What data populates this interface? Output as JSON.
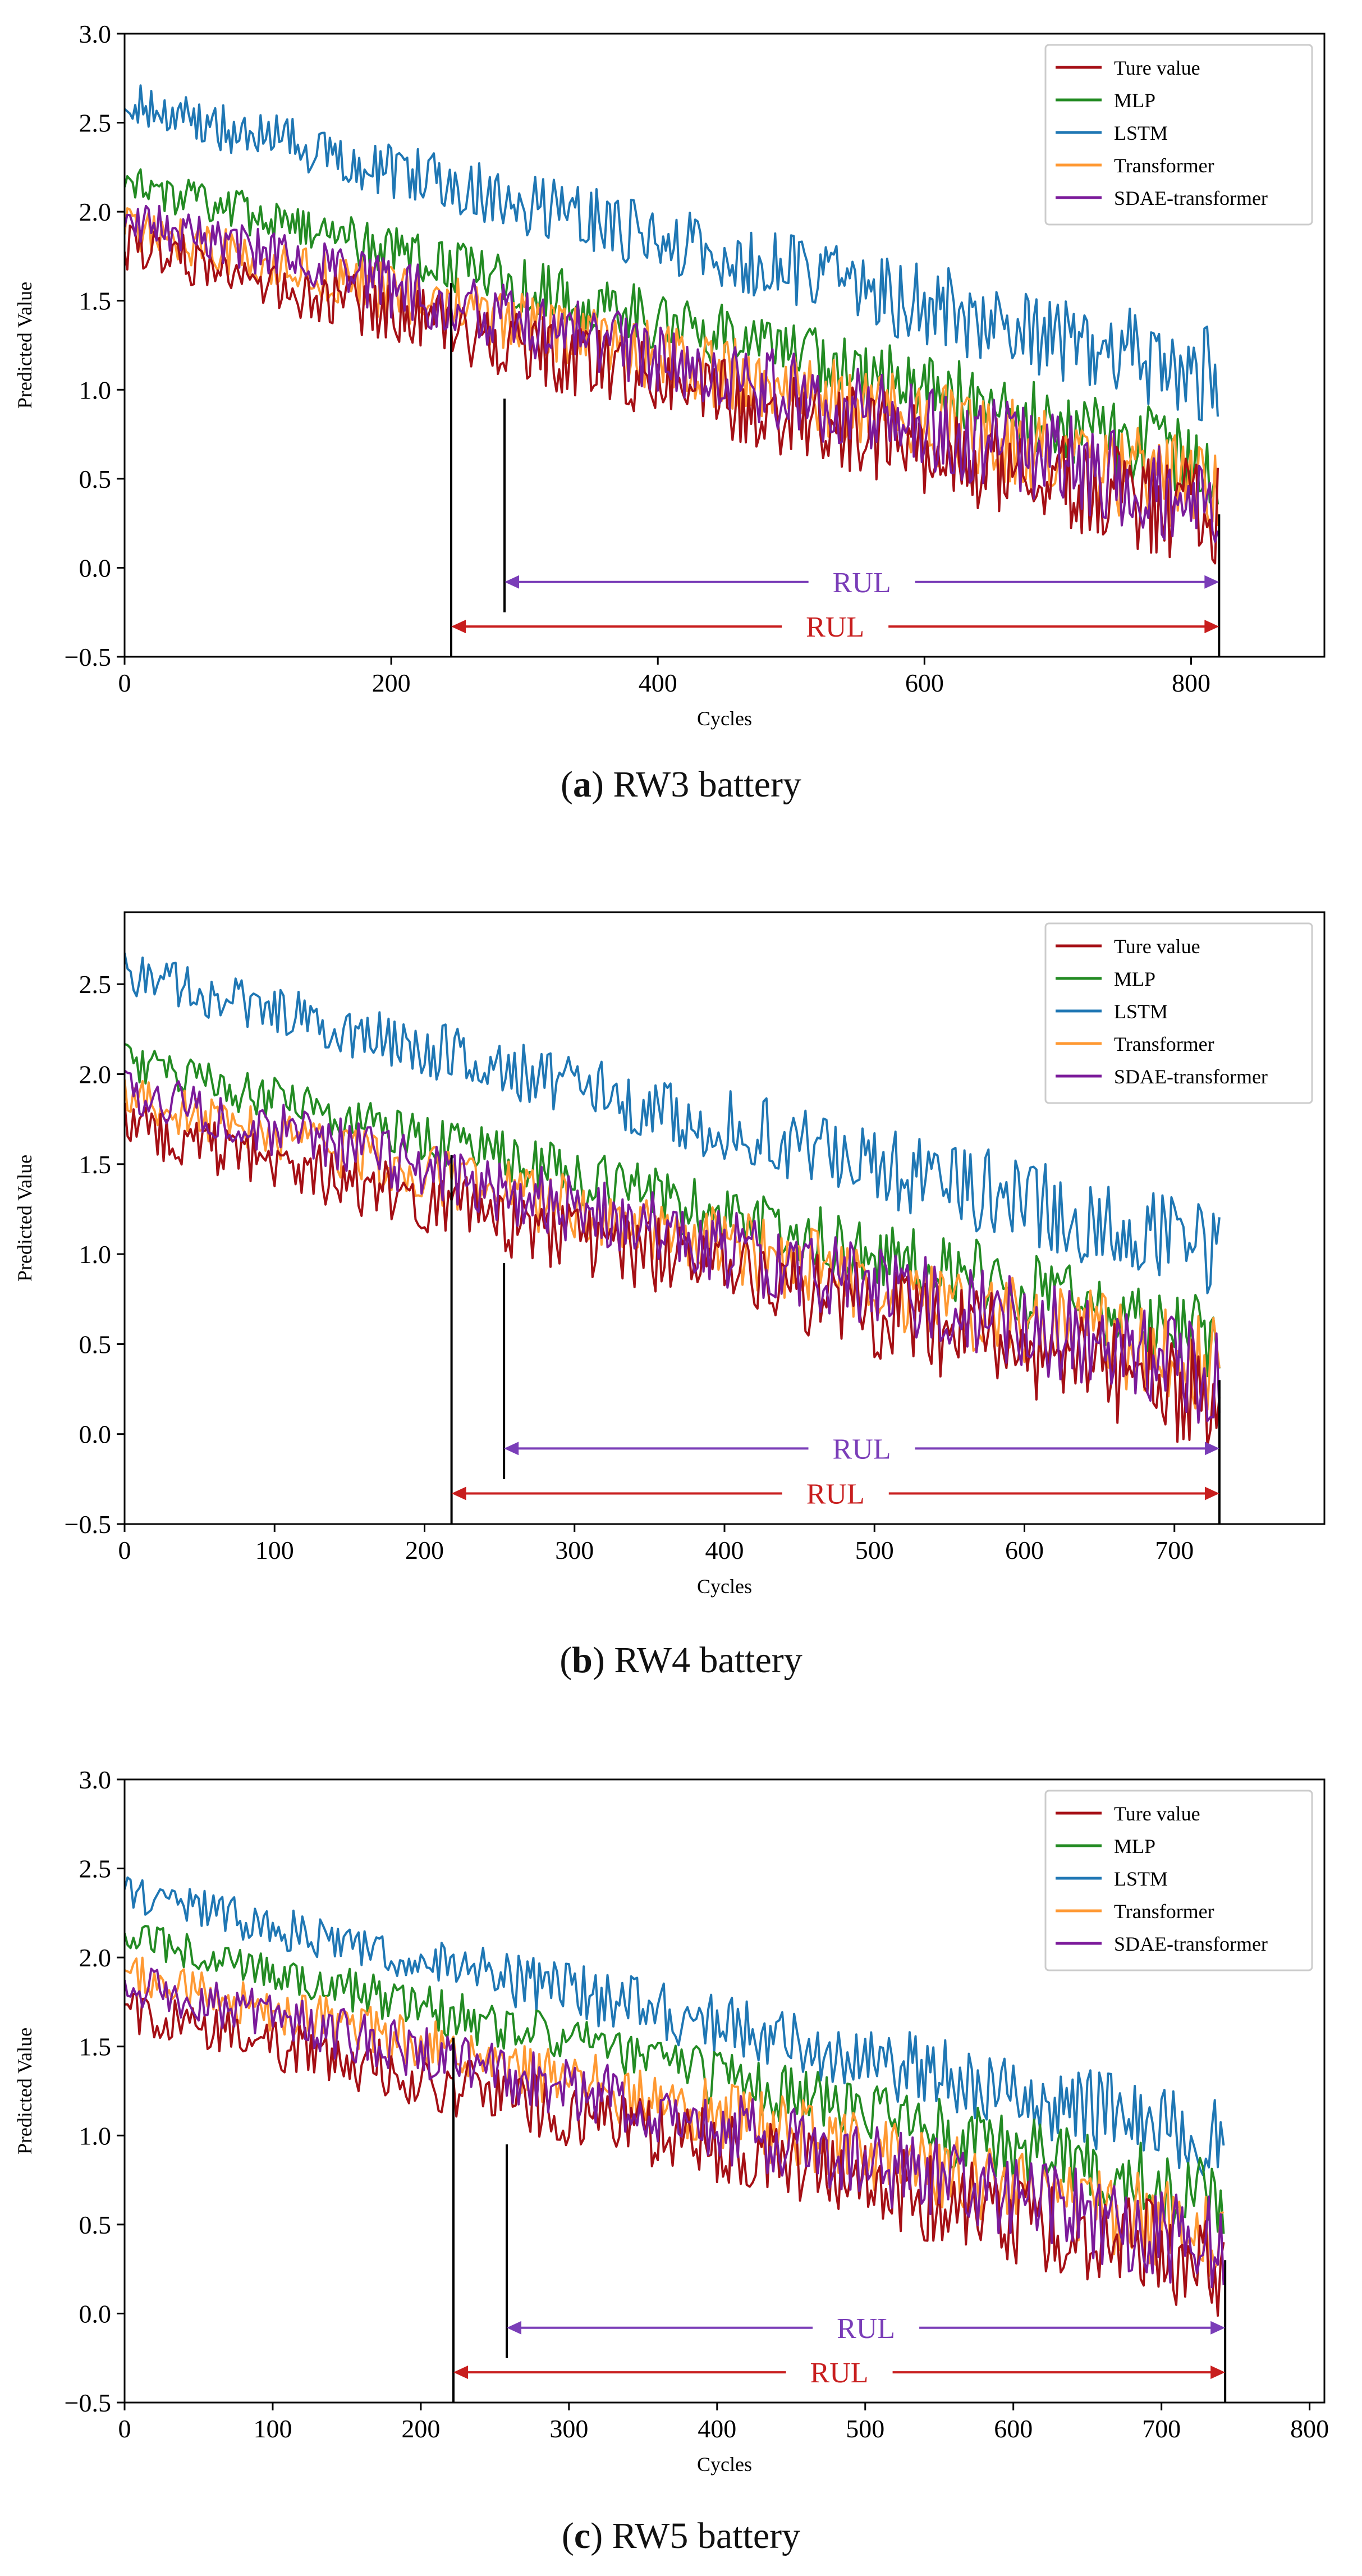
{
  "colors": {
    "ture_value": "#a50f15",
    "mlp": "#238b23",
    "lstm": "#1f77b4",
    "transformer": "#ff9933",
    "sdae_transformer": "#7b1a9a",
    "rul_purple": "#7a3db8",
    "rul_red": "#c81e1e"
  },
  "panels": [
    {
      "caption_letter": "a",
      "caption_text": " RW3 battery",
      "chart_data": {
        "type": "line",
        "xlabel": "Cycles",
        "ylabel": "Predicted Value",
        "xlim": [
          0,
          900
        ],
        "ylim": [
          -0.5,
          3.0
        ],
        "xticks": [
          0,
          200,
          400,
          600,
          800
        ],
        "yticks": [
          -0.5,
          0.0,
          0.5,
          1.0,
          1.5,
          2.0,
          2.5,
          3.0
        ],
        "ytick_labels": [
          "−0.5",
          "0.0",
          "0.5",
          "1.0",
          "1.5",
          "2.0",
          "2.5",
          "3.0"
        ],
        "legend": "top-right",
        "n_cycles": 821,
        "grid": false,
        "series": [
          {
            "name": "Ture value",
            "start": 1.85,
            "end": 0.35,
            "noise": 0.45
          },
          {
            "name": "MLP",
            "start": 2.2,
            "end": 0.65,
            "noise": 0.35
          },
          {
            "name": "LSTM",
            "start": 2.65,
            "end": 1.15,
            "noise": 0.4
          },
          {
            "name": "Transformer",
            "start": 1.95,
            "end": 0.5,
            "noise": 0.4
          },
          {
            "name": "SDAE-transformer",
            "start": 2.0,
            "end": 0.45,
            "noise": 0.42
          }
        ],
        "annotations": [
          {
            "text": "RUL",
            "x_start": 285,
            "x_end": 821,
            "y": -0.08,
            "color": "purple"
          },
          {
            "text": "RUL",
            "x_start": 245,
            "x_end": 821,
            "y": -0.33,
            "color": "red"
          }
        ],
        "vlines": [
          {
            "x": 245,
            "y_top": 1.6,
            "y_bottom": -0.5
          },
          {
            "x": 285,
            "y_top": 0.95,
            "y_bottom": -0.25
          },
          {
            "x": 821,
            "y_top": 0.3,
            "y_bottom": -0.5
          }
        ]
      }
    },
    {
      "caption_letter": "b",
      "caption_text": " RW4 battery",
      "chart_data": {
        "type": "line",
        "xlabel": "Cycles",
        "ylabel": "Predicted Value",
        "xlim": [
          0,
          800
        ],
        "ylim": [
          -0.5,
          2.9
        ],
        "xticks": [
          0,
          100,
          200,
          300,
          400,
          500,
          600,
          700
        ],
        "yticks": [
          -0.5,
          0.0,
          0.5,
          1.0,
          1.5,
          2.0,
          2.5
        ],
        "ytick_labels": [
          "−0.5",
          "0.0",
          "0.5",
          "1.0",
          "1.5",
          "2.0",
          "2.5"
        ],
        "legend": "top-right",
        "n_cycles": 730,
        "grid": false,
        "series": [
          {
            "name": "Ture value",
            "start": 1.75,
            "end": 0.3,
            "noise": 0.45
          },
          {
            "name": "MLP",
            "start": 2.1,
            "end": 0.6,
            "noise": 0.35
          },
          {
            "name": "LSTM",
            "start": 2.6,
            "end": 1.1,
            "noise": 0.4
          },
          {
            "name": "Transformer",
            "start": 1.9,
            "end": 0.45,
            "noise": 0.4
          },
          {
            "name": "SDAE-transformer",
            "start": 1.95,
            "end": 0.4,
            "noise": 0.42
          }
        ],
        "annotations": [
          {
            "text": "RUL",
            "x_start": 253,
            "x_end": 730,
            "y": -0.08,
            "color": "purple"
          },
          {
            "text": "RUL",
            "x_start": 218,
            "x_end": 730,
            "y": -0.33,
            "color": "red"
          }
        ],
        "vlines": [
          {
            "x": 218,
            "y_top": 1.55,
            "y_bottom": -0.5
          },
          {
            "x": 253,
            "y_top": 0.95,
            "y_bottom": -0.25
          },
          {
            "x": 730,
            "y_top": 0.3,
            "y_bottom": -0.5
          }
        ]
      }
    },
    {
      "caption_letter": "c",
      "caption_text": " RW5 battery",
      "chart_data": {
        "type": "line",
        "xlabel": "Cycles",
        "ylabel": "Predicted Value",
        "xlim": [
          0,
          810
        ],
        "ylim": [
          -0.5,
          3.0
        ],
        "xticks": [
          0,
          100,
          200,
          300,
          400,
          500,
          600,
          700,
          800
        ],
        "yticks": [
          -0.5,
          0.0,
          0.5,
          1.0,
          1.5,
          2.0,
          2.5,
          3.0
        ],
        "ytick_labels": [
          "−0.5",
          "0.0",
          "0.5",
          "1.0",
          "1.5",
          "2.0",
          "2.5",
          "3.0"
        ],
        "legend": "top-right",
        "n_cycles": 743,
        "grid": false,
        "series": [
          {
            "name": "Ture value",
            "start": 1.75,
            "end": 0.35,
            "noise": 0.42
          },
          {
            "name": "MLP",
            "start": 2.15,
            "end": 0.7,
            "noise": 0.32
          },
          {
            "name": "LSTM",
            "start": 2.4,
            "end": 1.05,
            "noise": 0.35
          },
          {
            "name": "Transformer",
            "start": 1.95,
            "end": 0.5,
            "noise": 0.38
          },
          {
            "name": "SDAE-transformer",
            "start": 1.9,
            "end": 0.45,
            "noise": 0.4
          }
        ],
        "annotations": [
          {
            "text": "RUL",
            "x_start": 258,
            "x_end": 743,
            "y": -0.08,
            "color": "purple"
          },
          {
            "text": "RUL",
            "x_start": 222,
            "x_end": 743,
            "y": -0.33,
            "color": "red"
          }
        ],
        "vlines": [
          {
            "x": 222,
            "y_top": 1.55,
            "y_bottom": -0.5
          },
          {
            "x": 258,
            "y_top": 0.95,
            "y_bottom": -0.25
          },
          {
            "x": 743,
            "y_top": 0.3,
            "y_bottom": -0.5
          }
        ]
      }
    }
  ]
}
